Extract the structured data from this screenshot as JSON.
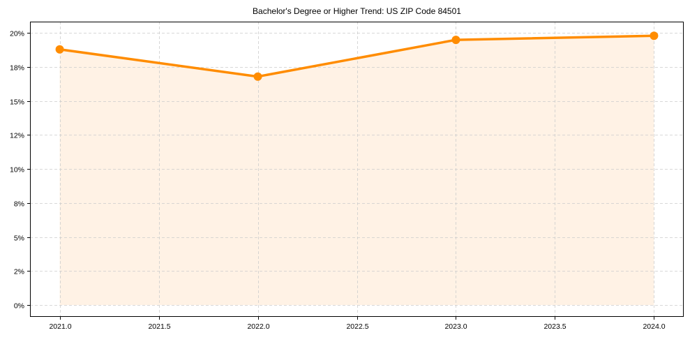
{
  "chart_data": {
    "type": "line",
    "title": "Bachelor's Degree or Higher Trend: US ZIP Code 84501",
    "xlabel": "",
    "ylabel": "",
    "x": [
      2021,
      2022,
      2023,
      2024
    ],
    "series": [
      {
        "name": "Bachelor's Degree or Higher",
        "values": [
          18.8,
          16.8,
          19.5,
          19.8
        ],
        "unit": "%",
        "color": "#FF8C00",
        "fill_color": "#FFF2E5",
        "marker": "circle"
      }
    ],
    "xlim": [
      2020.85,
      2024.15
    ],
    "ylim": [
      -0.87,
      20.84
    ],
    "x_ticks": [
      {
        "value": 2021.0,
        "label": "2021.0"
      },
      {
        "value": 2021.5,
        "label": "2021.5"
      },
      {
        "value": 2022.0,
        "label": "2022.0"
      },
      {
        "value": 2022.5,
        "label": "2022.5"
      },
      {
        "value": 2023.0,
        "label": "2023.0"
      },
      {
        "value": 2023.5,
        "label": "2023.5"
      },
      {
        "value": 2024.0,
        "label": "2024.0"
      }
    ],
    "y_ticks": [
      {
        "value": 0,
        "label": "0%"
      },
      {
        "value": 2.5,
        "label": "2%"
      },
      {
        "value": 5,
        "label": "5%"
      },
      {
        "value": 7.5,
        "label": "8%"
      },
      {
        "value": 10,
        "label": "10%"
      },
      {
        "value": 12.5,
        "label": "12%"
      },
      {
        "value": 15,
        "label": "15%"
      },
      {
        "value": 17.5,
        "label": "18%"
      },
      {
        "value": 20,
        "label": "20%"
      }
    ],
    "grid": true,
    "grid_style": "dashed",
    "legend": null
  },
  "colors": {
    "line": "#FF8C00",
    "fill": "#FFF2E5",
    "grid": "#CCCCCC",
    "axis": "#000000"
  }
}
